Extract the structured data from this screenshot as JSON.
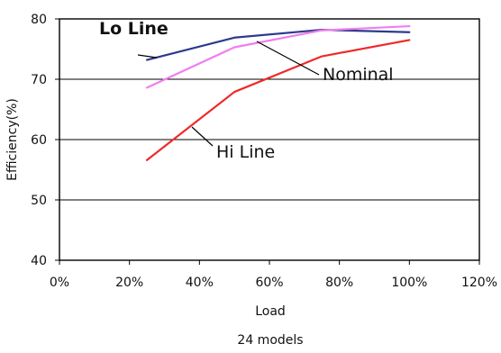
{
  "chart_data": {
    "type": "line",
    "xlabel": "Load",
    "ylabel": "Efficiency(%)",
    "xlim": [
      0,
      120
    ],
    "ylim": [
      40,
      80
    ],
    "x_ticks": [
      0,
      20,
      40,
      60,
      80,
      100,
      120
    ],
    "x_tick_labels": [
      "0%",
      "20%",
      "40%",
      "60%",
      "80%",
      "100%",
      "120%"
    ],
    "y_ticks": [
      40,
      50,
      60,
      70,
      80
    ],
    "y_tick_labels": [
      "40",
      "50",
      "60",
      "70",
      "80"
    ],
    "grid": true,
    "caption": "24 models",
    "series": [
      {
        "name": "Lo Line",
        "color": "#2e3a8c",
        "x": [
          25,
          50,
          75,
          100
        ],
        "y": [
          73.2,
          76.9,
          78.2,
          77.8
        ]
      },
      {
        "name": "Nominal",
        "color": "#f07ef0",
        "x": [
          25,
          50,
          75,
          100
        ],
        "y": [
          68.6,
          75.3,
          78.1,
          78.8
        ]
      },
      {
        "name": "Hi Line",
        "color": "#ee2a2a",
        "x": [
          25,
          50,
          75,
          100
        ],
        "y": [
          56.6,
          67.9,
          73.8,
          76.5
        ]
      }
    ],
    "annotations": [
      {
        "text": "Lo Line",
        "series": "Lo Line"
      },
      {
        "text": "Nominal",
        "series": "Nominal"
      },
      {
        "text": "Hi Line",
        "series": "Hi Line"
      }
    ]
  }
}
